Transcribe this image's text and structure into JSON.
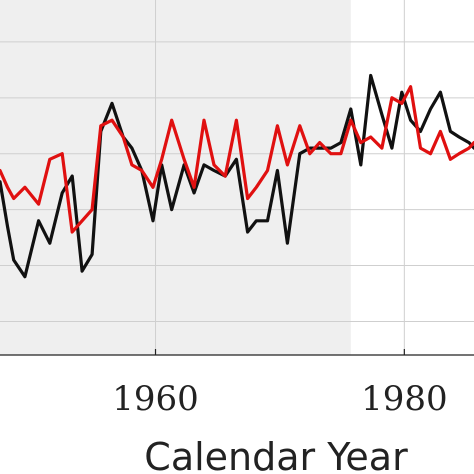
{
  "chart_data": {
    "type": "line",
    "xlabel": "Calendar Year",
    "ylabel": "",
    "title": "",
    "xlim": [
      1947.5,
      1985.6
    ],
    "ylim": [
      -3.6,
      2.75
    ],
    "xticks": [
      1960,
      1980
    ],
    "xtick_labels": [
      "1960",
      "1980"
    ],
    "yticks": [
      -3,
      -2,
      -1,
      0,
      1,
      2
    ],
    "grid": true,
    "shaded_region": {
      "x_start": 1947.5,
      "x_end": 1975.7,
      "color": "#efefef"
    },
    "series": [
      {
        "color": "#111111",
        "x": [
          1947.5,
          1948.1,
          1948.6,
          1949.5,
          1950.6,
          1951.5,
          1952.5,
          1953.3,
          1954.1,
          1954.9,
          1955.6,
          1956.5,
          1957.4,
          1958.1,
          1958.9,
          1959.8,
          1960.5,
          1961.3,
          1962.3,
          1963.1,
          1963.9,
          1964.7,
          1965.6,
          1966.5,
          1967.4,
          1968.1,
          1969.0,
          1969.8,
          1970.6,
          1971.6,
          1972.4,
          1973.2,
          1974.1,
          1974.9,
          1975.7,
          1976.5,
          1977.3,
          1978.2,
          1979.0,
          1979.8,
          1980.5,
          1981.3,
          1982.1,
          1982.9,
          1983.7,
          1984.4,
          1985.2,
          1985.6
        ],
        "y": [
          -0.5,
          -1.3,
          -1.9,
          -2.2,
          -1.2,
          -1.6,
          -0.7,
          -0.4,
          -2.1,
          -1.8,
          0.4,
          0.9,
          0.3,
          0.1,
          -0.3,
          -1.2,
          -0.2,
          -1.0,
          -0.2,
          -0.7,
          -0.2,
          -0.3,
          -0.4,
          -0.1,
          -1.4,
          -1.2,
          -1.2,
          -0.3,
          -1.6,
          0.0,
          0.1,
          0.1,
          0.1,
          0.2,
          0.8,
          -0.2,
          1.4,
          0.7,
          0.1,
          1.1,
          0.6,
          0.4,
          0.8,
          1.1,
          0.4,
          0.3,
          0.2,
          0.1
        ]
      },
      {
        "color": "#e01010",
        "x": [
          1947.5,
          1948.1,
          1948.6,
          1949.5,
          1950.6,
          1951.5,
          1952.5,
          1953.3,
          1954.1,
          1954.9,
          1955.6,
          1956.5,
          1957.4,
          1958.1,
          1958.9,
          1959.8,
          1960.5,
          1961.3,
          1962.3,
          1963.1,
          1963.9,
          1964.7,
          1965.6,
          1966.5,
          1967.4,
          1968.1,
          1969.0,
          1969.8,
          1970.6,
          1971.6,
          1972.4,
          1973.2,
          1974.1,
          1974.9,
          1975.7,
          1976.5,
          1977.3,
          1978.2,
          1979.0,
          1979.8,
          1980.5,
          1981.3,
          1982.1,
          1982.9,
          1983.7,
          1984.4,
          1985.2,
          1985.6
        ],
        "y": [
          -0.3,
          -0.6,
          -0.8,
          -0.6,
          -0.9,
          -0.1,
          0.0,
          -1.4,
          -1.2,
          -1.0,
          0.5,
          0.6,
          0.3,
          -0.2,
          -0.3,
          -0.6,
          -0.1,
          0.6,
          -0.1,
          -0.6,
          0.6,
          -0.2,
          -0.4,
          0.6,
          -0.8,
          -0.6,
          -0.3,
          0.5,
          -0.2,
          0.5,
          0.0,
          0.2,
          0.0,
          0.0,
          0.6,
          0.2,
          0.3,
          0.1,
          1.0,
          0.9,
          1.2,
          0.1,
          0.0,
          0.4,
          -0.1,
          0.0,
          0.1,
          0.2
        ]
      }
    ]
  }
}
